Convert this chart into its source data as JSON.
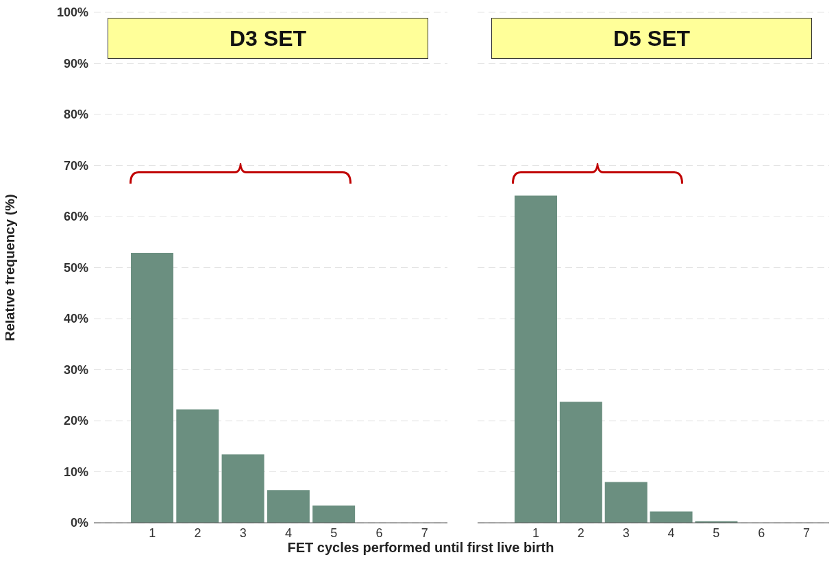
{
  "chart_data": [
    {
      "type": "bar",
      "title": "D3 SET",
      "xlabel": "FET cycles performed until first live birth",
      "ylabel": "Relative frequency (%)",
      "categories": [
        "1",
        "2",
        "3",
        "4",
        "5",
        "6",
        "7"
      ],
      "values": [
        52.9,
        22.2,
        13.4,
        6.4,
        3.4,
        0,
        0
      ],
      "color": "#6b8f80",
      "ylim": [
        0,
        100
      ],
      "yticks": [
        {
          "value": 0,
          "label": "0%"
        },
        {
          "value": 10,
          "label": "10%"
        },
        {
          "value": 20,
          "label": "20%"
        },
        {
          "value": 30,
          "label": "30%"
        },
        {
          "value": 40,
          "label": "40%"
        },
        {
          "value": 50,
          "label": "50%"
        },
        {
          "value": 60,
          "label": "60%"
        },
        {
          "value": 70,
          "label": "70%"
        },
        {
          "value": 80,
          "label": "80%"
        },
        {
          "value": 90,
          "label": "90%"
        },
        {
          "value": 100,
          "label": "100%"
        }
      ],
      "grid": "y"
    },
    {
      "type": "bar",
      "title": "D5 SET",
      "categories": [
        "1",
        "2",
        "3",
        "4",
        "5",
        "6",
        "7"
      ],
      "values": [
        64.1,
        23.7,
        8.0,
        2.2,
        0.3,
        0,
        0
      ],
      "color": "#6b8f80",
      "ylim": [
        0,
        100
      ],
      "yticks": [
        0,
        10,
        20,
        30,
        40,
        50,
        60,
        70,
        80,
        90,
        100
      ],
      "grid": "y",
      "tick_labels": "x"
    }
  ]
}
